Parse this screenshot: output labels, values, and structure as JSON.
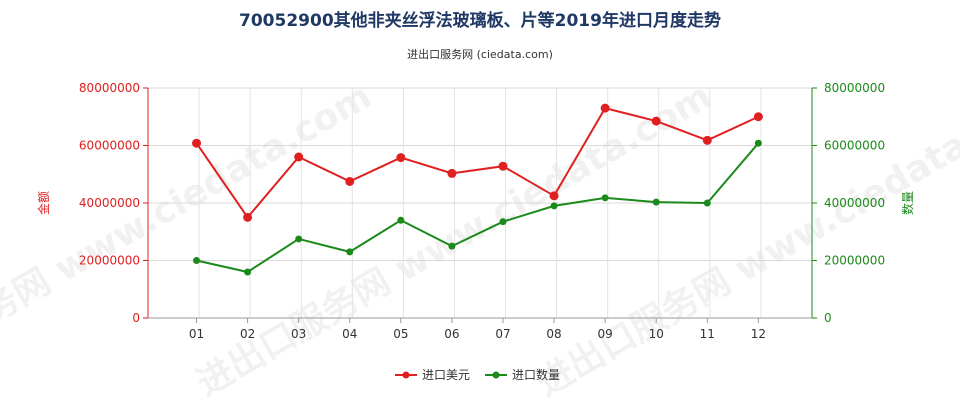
{
  "header": {
    "title": "70052900其他非夹丝浮法玻璃板、片等2019年进口月度走势",
    "subtitle": "进出口服务网 (ciedata.com)"
  },
  "watermark": "进出口服务网 www.ciedata.com",
  "chart_data": {
    "type": "line",
    "categories": [
      "01",
      "02",
      "03",
      "04",
      "05",
      "06",
      "07",
      "08",
      "09",
      "10",
      "11",
      "12"
    ],
    "y_left": {
      "label": "金额",
      "min": 0,
      "max": 80000000,
      "ticks": [
        "0",
        "20000000",
        "40000000",
        "60000000",
        "80000000"
      ],
      "color": "#e02020"
    },
    "y_right": {
      "label": "数量",
      "min": 0,
      "max": 80000000,
      "ticks": [
        "0",
        "20000000",
        "40000000",
        "60000000",
        "80000000"
      ],
      "color": "#1a8a1a"
    },
    "grid": true,
    "legend_position": "bottom-center",
    "series": [
      {
        "name": "进口美元",
        "axis": "left",
        "color": "#e02020",
        "values": [
          60800000,
          35000000,
          56000000,
          47500000,
          55800000,
          50300000,
          52800000,
          42500000,
          73000000,
          68500000,
          61800000,
          70000000
        ]
      },
      {
        "name": "进口数量",
        "axis": "right",
        "color": "#1a8a1a",
        "values": [
          20000000,
          16000000,
          27500000,
          23000000,
          34000000,
          25000000,
          33500000,
          39000000,
          41800000,
          40300000,
          40000000,
          60800000
        ]
      }
    ]
  }
}
